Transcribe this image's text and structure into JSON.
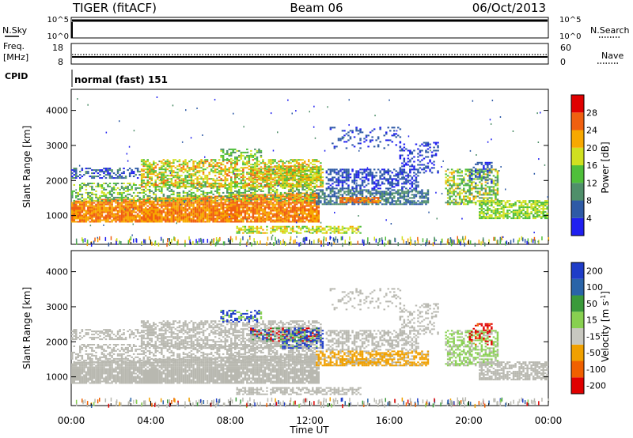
{
  "header": {
    "station": "TIGER (fitACF)",
    "beam": "Beam 06",
    "date": "06/Oct/2013"
  },
  "top_panels": {
    "nsky_label": "N.Sky",
    "nsky_ticks": [
      "10^5",
      "10^0"
    ],
    "nsearch_label": "N.Search",
    "nsearch_ticks": [
      "10^5",
      "10^0"
    ],
    "freq_label": "Freq.",
    "freq_unit": "[MHz]",
    "freq_ticks": [
      "18",
      "8"
    ],
    "nave_label": "Nave",
    "nave_ticks": [
      "60",
      "0"
    ],
    "cpid_label": "CPID",
    "cpid_text": "normal (fast) 151"
  },
  "chart_data": [
    {
      "type": "heatmap",
      "name": "power",
      "xlabel": "Time UT",
      "ylabel": "Slant Range [km]",
      "x_ticks": [
        "00:00",
        "04:00",
        "08:00",
        "12:00",
        "16:00",
        "20:00",
        "00:00"
      ],
      "xlim_hours": [
        0,
        24
      ],
      "ylim_km": [
        180,
        4600
      ],
      "y_ticks": [
        1000,
        2000,
        3000,
        4000
      ],
      "colorbar_label": "Power [dB]",
      "colorbar_ticks": [
        "4",
        "8",
        "12",
        "16",
        "20",
        "24",
        "28"
      ],
      "colorbar_colors": [
        "#1f1ff0",
        "#2e5aa6",
        "#4f8f6a",
        "#4fbf3a",
        "#d0e020",
        "#f7a800",
        "#f06010",
        "#e00000"
      ]
    },
    {
      "type": "heatmap",
      "name": "velocity",
      "xlabel": "Time UT",
      "ylabel": "Slant Range [km]",
      "x_ticks": [
        "00:00",
        "04:00",
        "08:00",
        "12:00",
        "16:00",
        "20:00",
        "00:00"
      ],
      "xlim_hours": [
        0,
        24
      ],
      "ylim_km": [
        180,
        4600
      ],
      "y_ticks": [
        1000,
        2000,
        3000,
        4000
      ],
      "colorbar_label": "Velocity [m s-1]",
      "colorbar_ticks": [
        "200",
        "100",
        "50",
        "15",
        "-15",
        "-50",
        "-100",
        "-200"
      ],
      "colorbar_colors": [
        "#1e3cc8",
        "#2a64a8",
        "#3a9a3a",
        "#88d050",
        "#c8c8c0",
        "#f0a000",
        "#f06000",
        "#e00000"
      ]
    }
  ],
  "colors": {
    "ground_scatter": "#b8b8b0"
  }
}
